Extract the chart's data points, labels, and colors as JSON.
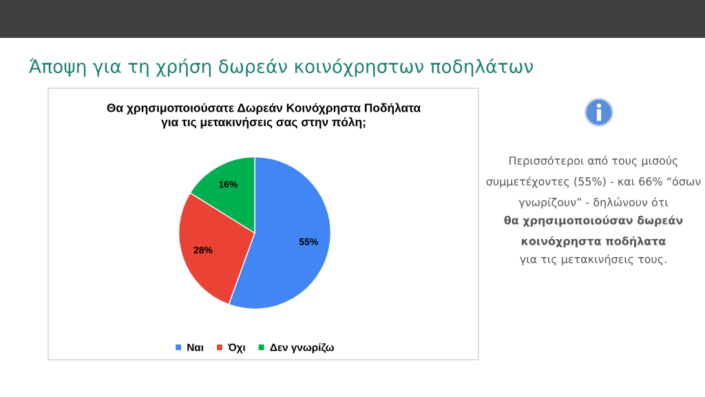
{
  "chart_data": {
    "type": "pie",
    "title": "Άποψη για τη χρήση δωρεάν κοινόχρηστων ποδηλάτων",
    "subtitle": "Θα χρησιμοποιούσατε Δωρεάν Κοινόχρηστα Ποδήλατα\nγια τις μετακινήσεις σας στην πόλη;",
    "categories": [
      "Ναι",
      "Όχι",
      "Δεν γνωρίζω"
    ],
    "values": [
      55,
      28,
      16
    ],
    "value_labels": [
      "55%",
      "28%",
      "16%"
    ],
    "colors": [
      "#4285f4",
      "#ea4335",
      "#00b050"
    ],
    "legend": "bottom",
    "annotations": [
      "Περισσότεροι από τους μισούς συμμετέχοντες (55%) - και 66% “όσων γνωρίζουν” - δηλώνουν ότι",
      "θα χρησιμοποιούσαν δωρεάν κοινόχρηστα ποδήλατα",
      "για τις μετακινήσεις τους."
    ]
  }
}
